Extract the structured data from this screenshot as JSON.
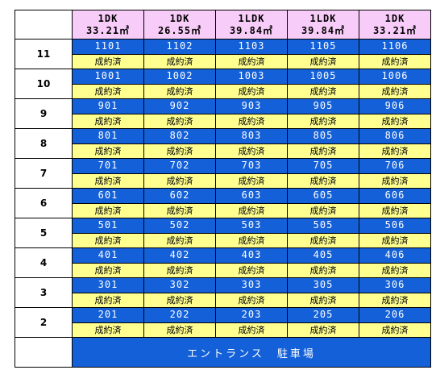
{
  "header": {
    "columns": [
      {
        "type": "1DK",
        "area": "33.21㎡"
      },
      {
        "type": "1DK",
        "area": "26.55㎡"
      },
      {
        "type": "1LDK",
        "area": "39.84㎡"
      },
      {
        "type": "1LDK",
        "area": "39.84㎡"
      },
      {
        "type": "1DK",
        "area": "33.21㎡"
      }
    ]
  },
  "floors": [
    {
      "floor": "11",
      "units": [
        "1101",
        "1102",
        "1103",
        "1105",
        "1106"
      ],
      "status": [
        "成約済",
        "成約済",
        "成約済",
        "成約済",
        "成約済"
      ]
    },
    {
      "floor": "10",
      "units": [
        "1001",
        "1002",
        "1003",
        "1005",
        "1006"
      ],
      "status": [
        "成約済",
        "成約済",
        "成約済",
        "成約済",
        "成約済"
      ]
    },
    {
      "floor": "9",
      "units": [
        "901",
        "902",
        "903",
        "905",
        "906"
      ],
      "status": [
        "成約済",
        "成約済",
        "成約済",
        "成約済",
        "成約済"
      ]
    },
    {
      "floor": "8",
      "units": [
        "801",
        "802",
        "803",
        "805",
        "806"
      ],
      "status": [
        "成約済",
        "成約済",
        "成約済",
        "成約済",
        "成約済"
      ]
    },
    {
      "floor": "7",
      "units": [
        "701",
        "702",
        "703",
        "705",
        "706"
      ],
      "status": [
        "成約済",
        "成約済",
        "成約済",
        "成約済",
        "成約済"
      ]
    },
    {
      "floor": "6",
      "units": [
        "601",
        "602",
        "603",
        "605",
        "606"
      ],
      "status": [
        "成約済",
        "成約済",
        "成約済",
        "成約済",
        "成約済"
      ]
    },
    {
      "floor": "5",
      "units": [
        "501",
        "502",
        "503",
        "505",
        "506"
      ],
      "status": [
        "成約済",
        "成約済",
        "成約済",
        "成約済",
        "成約済"
      ]
    },
    {
      "floor": "4",
      "units": [
        "401",
        "402",
        "403",
        "405",
        "406"
      ],
      "status": [
        "成約済",
        "成約済",
        "成約済",
        "成約済",
        "成約済"
      ]
    },
    {
      "floor": "3",
      "units": [
        "301",
        "302",
        "303",
        "305",
        "306"
      ],
      "status": [
        "成約済",
        "成約済",
        "成約済",
        "成約済",
        "成約済"
      ]
    },
    {
      "floor": "2",
      "units": [
        "201",
        "202",
        "203",
        "205",
        "206"
      ],
      "status": [
        "成約済",
        "成約済",
        "成約済",
        "成約済",
        "成約済"
      ]
    }
  ],
  "entrance": "エントランス　駐車場",
  "colors": {
    "header_bg": "#f8ccf8",
    "unit_bg": "#1460d8",
    "status_bg": "#ffff90"
  }
}
